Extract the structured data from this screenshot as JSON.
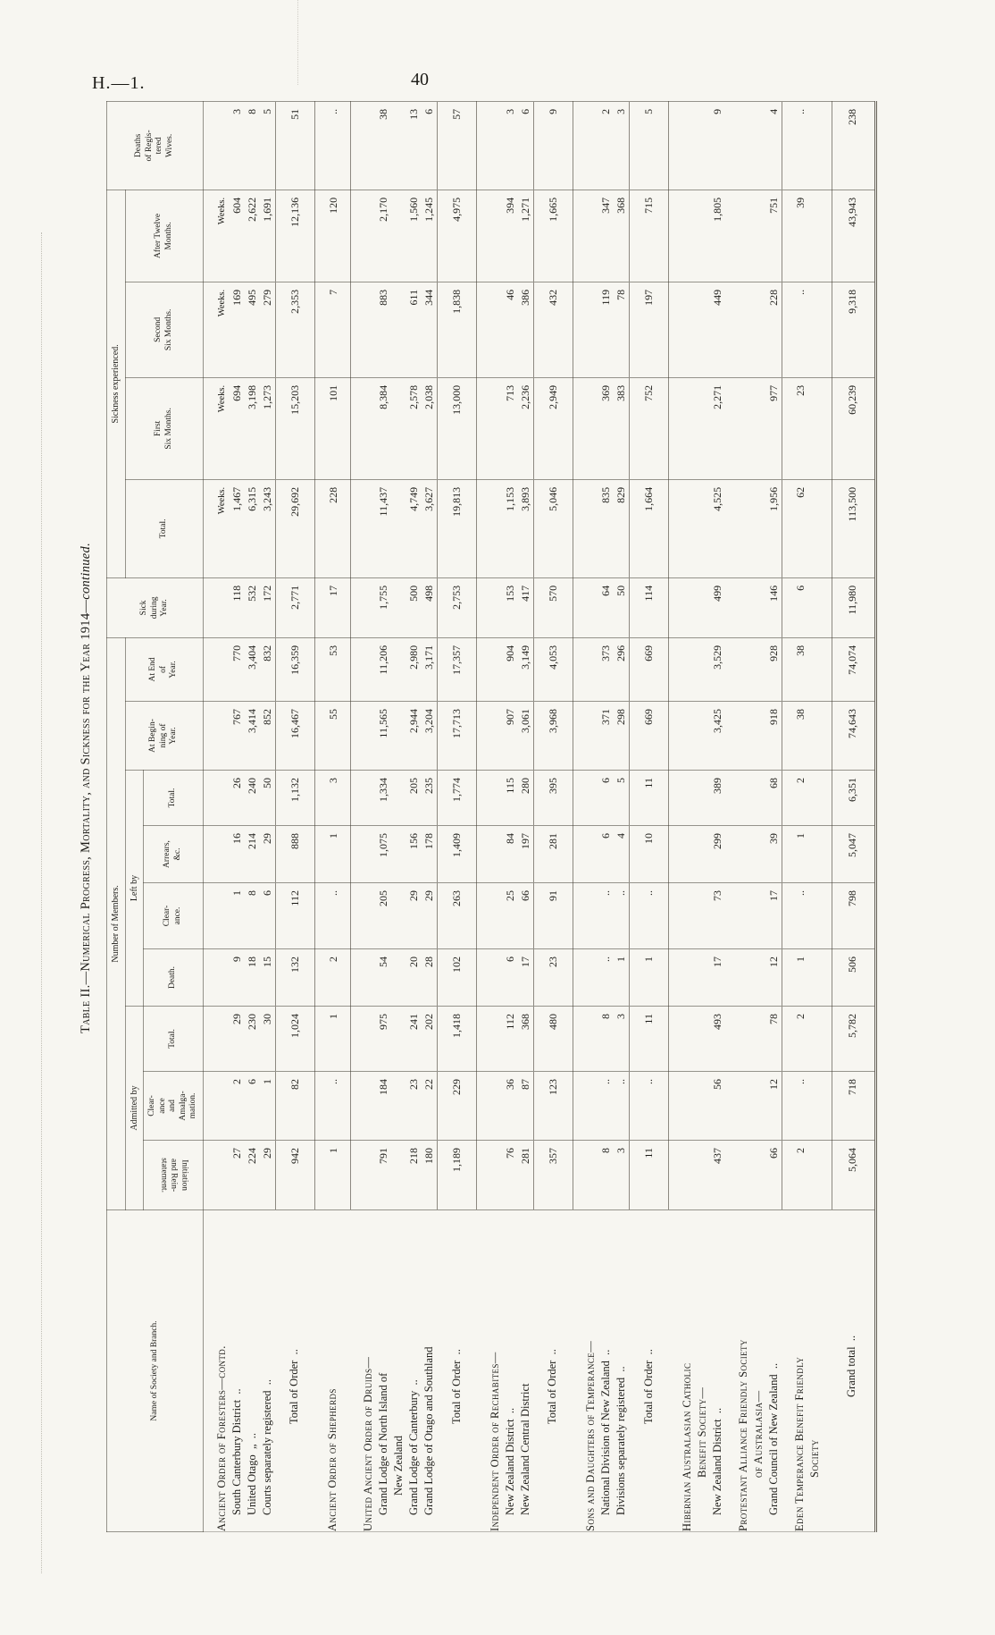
{
  "page": {
    "doc_ref": "H.—1.",
    "page_number": "40"
  },
  "caption": {
    "smallcaps_part": "Table II.—Numerical Progress, Mortality, and Sickness for the Year 1914—",
    "italic_part": "continued."
  },
  "table": {
    "headers": {
      "name": "Name of Society and Branch.",
      "number_of_members": "Number of Members.",
      "admitted_by": "Admitted by",
      "left_by": "Left by",
      "initiation": "Initiation\nand Rein-\nstatement.",
      "clearance_amalg": "Clear-\nance\nand\nAmalga-\nmation.",
      "total_admitted": "Total.",
      "death": "Death.",
      "clearance": "Clear-\nance.",
      "arrears": "Arrears,\n&c.",
      "total_left": "Total.",
      "at_beginning": "At Begin-\nning of\nYear.",
      "at_end": "At End\nof\nYear.",
      "sick_during_year": "Sick\nduring\nYear.",
      "sickness_experienced": "Sickness experienced.",
      "total_sickness": "Total.",
      "first_six": "First\nSix Months.",
      "second_six": "Second\nSix Months.",
      "after_twelve": "After Twelve\nMonths.",
      "deaths_wives": "Deaths\nof Regis-\ntered\nWives.",
      "weeks_label": "Weeks."
    },
    "column_keys": [
      "initiation",
      "clearance_amalg",
      "total_admitted",
      "death",
      "clearance",
      "arrears",
      "total_left",
      "at_beginning",
      "at_end",
      "sick_during_year",
      "total_sickness",
      "first_six",
      "second_six",
      "after_twelve",
      "deaths_wives"
    ],
    "rows": [
      {
        "type": "section",
        "name": "Ancient Order of Foresters—contd.",
        "weeks": true,
        "values": null
      },
      {
        "type": "item",
        "name": "South Canterbury District  ..",
        "values": [
          "27",
          "2",
          "29",
          "9",
          "1",
          "16",
          "26",
          "767",
          "770",
          "118",
          "1,467",
          "694",
          "169",
          "604",
          "3"
        ]
      },
      {
        "type": "item",
        "name": "United Otago  „  ..",
        "values": [
          "224",
          "6",
          "230",
          "18",
          "8",
          "214",
          "240",
          "3,414",
          "3,404",
          "532",
          "6,315",
          "3,198",
          "495",
          "2,622",
          "8"
        ]
      },
      {
        "type": "item",
        "name": "Courts separately registered  ..",
        "values": [
          "29",
          "1",
          "30",
          "15",
          "6",
          "29",
          "50",
          "852",
          "832",
          "172",
          "3,243",
          "1,273",
          "279",
          "1,691",
          "5"
        ]
      },
      {
        "type": "total",
        "name": "Total of Order  ..",
        "values": [
          "942",
          "82",
          "1,024",
          "132",
          "112",
          "888",
          "1,132",
          "16,467",
          "16,359",
          "2,771",
          "29,692",
          "15,203",
          "2,353",
          "12,136",
          "51"
        ]
      },
      {
        "type": "section-data",
        "name": "Ancient Order of Shepherds",
        "values": [
          "1",
          "..",
          "1",
          "2",
          "..",
          "1",
          "3",
          "55",
          "53",
          "17",
          "228",
          "101",
          "7",
          "120",
          ".."
        ]
      },
      {
        "type": "section",
        "name": "United Ancient Order of Druids—",
        "values": null
      },
      {
        "type": "item",
        "name": "Grand Lodge of North Island of\nNew Zealand",
        "values": [
          "791",
          "184",
          "975",
          "54",
          "205",
          "1,075",
          "1,334",
          "11,565",
          "11,206",
          "1,755",
          "11,437",
          "8,384",
          "883",
          "2,170",
          "38"
        ]
      },
      {
        "type": "item",
        "name": "Grand Lodge of Canterbury  ..",
        "values": [
          "218",
          "23",
          "241",
          "20",
          "29",
          "156",
          "205",
          "2,944",
          "2,980",
          "500",
          "4,749",
          "2,578",
          "611",
          "1,560",
          "13"
        ]
      },
      {
        "type": "item",
        "name": "Grand Lodge of Otago and Southland",
        "values": [
          "180",
          "22",
          "202",
          "28",
          "29",
          "178",
          "235",
          "3,204",
          "3,171",
          "498",
          "3,627",
          "2,038",
          "344",
          "1,245",
          "6"
        ]
      },
      {
        "type": "total",
        "name": "Total of Order  ..",
        "values": [
          "1,189",
          "229",
          "1,418",
          "102",
          "263",
          "1,409",
          "1,774",
          "17,713",
          "17,357",
          "2,753",
          "19,813",
          "13,000",
          "1,838",
          "4,975",
          "57"
        ]
      },
      {
        "type": "section",
        "name": "Independent Order of Rechabites—",
        "values": null
      },
      {
        "type": "item",
        "name": "New Zealand District  ..",
        "values": [
          "76",
          "36",
          "112",
          "6",
          "25",
          "84",
          "115",
          "907",
          "904",
          "153",
          "1,153",
          "713",
          "46",
          "394",
          "3"
        ]
      },
      {
        "type": "item",
        "name": "New Zealand Central District",
        "values": [
          "281",
          "87",
          "368",
          "17",
          "66",
          "197",
          "280",
          "3,061",
          "3,149",
          "417",
          "3,893",
          "2,236",
          "386",
          "1,271",
          "6"
        ]
      },
      {
        "type": "total",
        "name": "Total of Order  ..",
        "values": [
          "357",
          "123",
          "480",
          "23",
          "91",
          "281",
          "395",
          "3,968",
          "4,053",
          "570",
          "5,046",
          "2,949",
          "432",
          "1,665",
          "9"
        ]
      },
      {
        "type": "section",
        "name": "Sons and Daughters of Temperance—",
        "values": null
      },
      {
        "type": "item",
        "name": "National Division of New Zealand  ..",
        "values": [
          "8",
          "..",
          "8",
          "..",
          "..",
          "6",
          "6",
          "371",
          "373",
          "64",
          "835",
          "369",
          "119",
          "347",
          "2"
        ]
      },
      {
        "type": "item",
        "name": "Divisions separately registered  ..",
        "values": [
          "3",
          "..",
          "3",
          "1",
          "..",
          "4",
          "5",
          "298",
          "296",
          "50",
          "829",
          "383",
          "78",
          "368",
          "3"
        ]
      },
      {
        "type": "total",
        "name": "Total of Order  ..",
        "values": [
          "11",
          "..",
          "11",
          "1",
          "..",
          "10",
          "11",
          "669",
          "669",
          "114",
          "1,664",
          "752",
          "197",
          "715",
          "5"
        ]
      },
      {
        "type": "section",
        "name": "Hibernian Australasian Catholic\nBenefit Society—",
        "values": null
      },
      {
        "type": "item",
        "name": "New Zealand District  ..",
        "values": [
          "437",
          "56",
          "493",
          "17",
          "73",
          "299",
          "389",
          "3,425",
          "3,529",
          "499",
          "4,525",
          "2,271",
          "449",
          "1,805",
          "9"
        ]
      },
      {
        "type": "section",
        "name": "Protestant Alliance Friendly Society\nof Australasia—",
        "values": null
      },
      {
        "type": "item",
        "name": "Grand Council of New Zealand  ..",
        "values": [
          "66",
          "12",
          "78",
          "12",
          "17",
          "39",
          "68",
          "918",
          "928",
          "146",
          "1,956",
          "977",
          "228",
          "751",
          "4"
        ]
      },
      {
        "type": "section-data",
        "name": "Eden Temperance Benefit Friendly\nSociety",
        "values": [
          "2",
          "..",
          "2",
          "1",
          "..",
          "1",
          "2",
          "38",
          "38",
          "6",
          "62",
          "23",
          "..",
          "39",
          ".."
        ]
      },
      {
        "type": "grand-total",
        "name": "Grand total  ..",
        "values": [
          "5,064",
          "718",
          "5,782",
          "506",
          "798",
          "5,047",
          "6,351",
          "74,643",
          "74,074",
          "11,980",
          "113,500",
          "60,239",
          "9,318",
          "43,943",
          "238"
        ]
      }
    ]
  }
}
